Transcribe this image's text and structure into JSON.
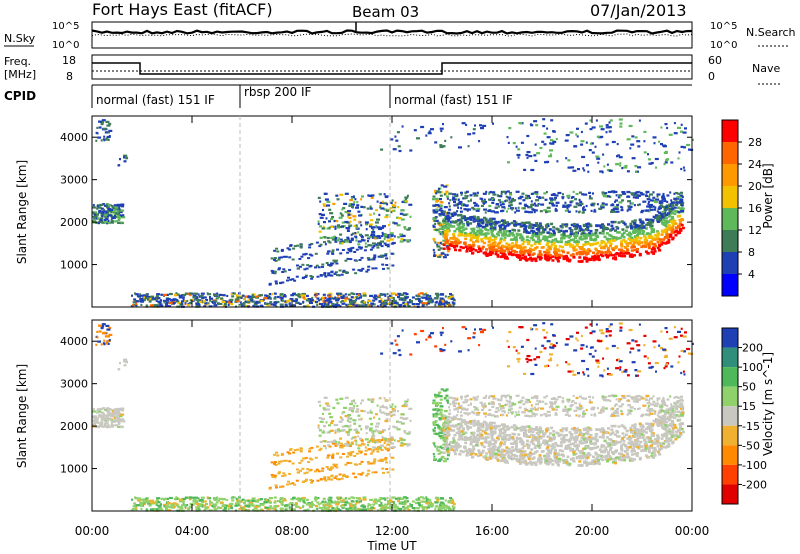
{
  "header": {
    "station": "Fort Hays East (fitACF)",
    "beam": "Beam 03",
    "date": "07/Jan/2013"
  },
  "noise_panel": {
    "left_label": "N.Sky",
    "right_label": "N.Search",
    "left_ticks": [
      "10^5",
      "10^0"
    ],
    "right_ticks": [
      "10^5",
      "10^0"
    ]
  },
  "freq_panel": {
    "left_label_1": "Freq.",
    "left_label_2": "[MHz]",
    "right_label": "Nave",
    "left_ticks": [
      "18",
      "8"
    ],
    "right_ticks": [
      "60",
      "0"
    ]
  },
  "cpid": {
    "label": "CPID",
    "segments": [
      {
        "text": "normal (fast) 151 IF",
        "start_hr": 0,
        "end_hr": 6
      },
      {
        "text": "rbsp 200 IF",
        "start_hr": 6,
        "end_hr": 12
      },
      {
        "text": "normal (fast) 151 IF",
        "start_hr": 12,
        "end_hr": 24
      }
    ]
  },
  "chart_data": [
    {
      "type": "heatmap",
      "name": "power",
      "ylabel": "Slant Range [km]",
      "colorbar_label": "Power [dB]",
      "colorbar_ticks": [
        "28",
        "24",
        "20",
        "16",
        "12",
        "8",
        "4"
      ],
      "colorbar_colors": [
        "#ff0000",
        "#ff6600",
        "#ff9900",
        "#f2c200",
        "#5fb85a",
        "#3d7c56",
        "#1f3fb5",
        "#0000ff"
      ],
      "ylim": [
        0,
        4500
      ],
      "yticks": [
        "4000",
        "3000",
        "2000",
        "1000"
      ],
      "xlim": [
        0,
        24
      ]
    },
    {
      "type": "heatmap",
      "name": "velocity",
      "ylabel": "Slant Range [km]",
      "colorbar_label": "Velocity [m s^-1]",
      "colorbar_ticks": [
        "200",
        "100",
        "50",
        "15",
        "-15",
        "-50",
        "-100",
        "-200"
      ],
      "colorbar_colors": [
        "#1f3fb5",
        "#2f8f7a",
        "#4fb85a",
        "#8fd16a",
        "#c8c8c0",
        "#f0b030",
        "#ff8a00",
        "#ff4000",
        "#e00000"
      ],
      "ylim": [
        0,
        4500
      ],
      "yticks": [
        "4000",
        "3000",
        "2000",
        "1000"
      ],
      "xlim": [
        0,
        24
      ]
    }
  ],
  "xaxis": {
    "label": "Time UT",
    "ticks": [
      "00:00",
      "04:00",
      "08:00",
      "12:00",
      "16:00",
      "20:00",
      "00:00"
    ]
  }
}
